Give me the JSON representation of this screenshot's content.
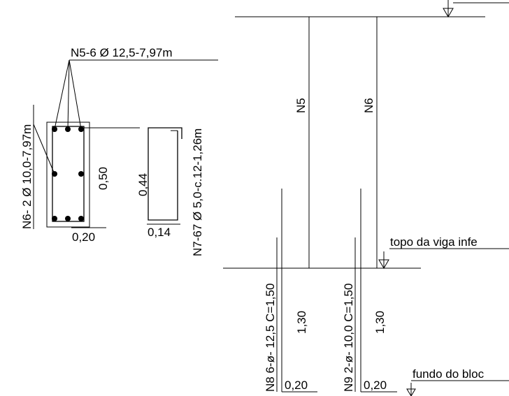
{
  "section": {
    "dim_width": "0,20",
    "dim_height": "0,50",
    "bar_n5_label": "N5-6 Ø 12,5-7,97m",
    "bar_n6_label": "N6- 2 Ø 10,0-7,97m"
  },
  "stirrup": {
    "dim_height": "0,44",
    "dim_width": "0,14",
    "label": "N7-67 Ø 5,0-c.12-1,26m"
  },
  "elevation": {
    "bar_n5": "N5",
    "bar_n6": "N6",
    "top_beam_label": "topo da viga infe",
    "bottom_block_label": "fundo do bloc",
    "n8_label": "N8 6-ø- 12,5  C=1,50",
    "n8_length": "1,30",
    "n8_width": "0,20",
    "n9_label": "N9 2-ø- 10,0  C=1,50",
    "n9_length": "1,30",
    "n9_width": "0,20"
  }
}
